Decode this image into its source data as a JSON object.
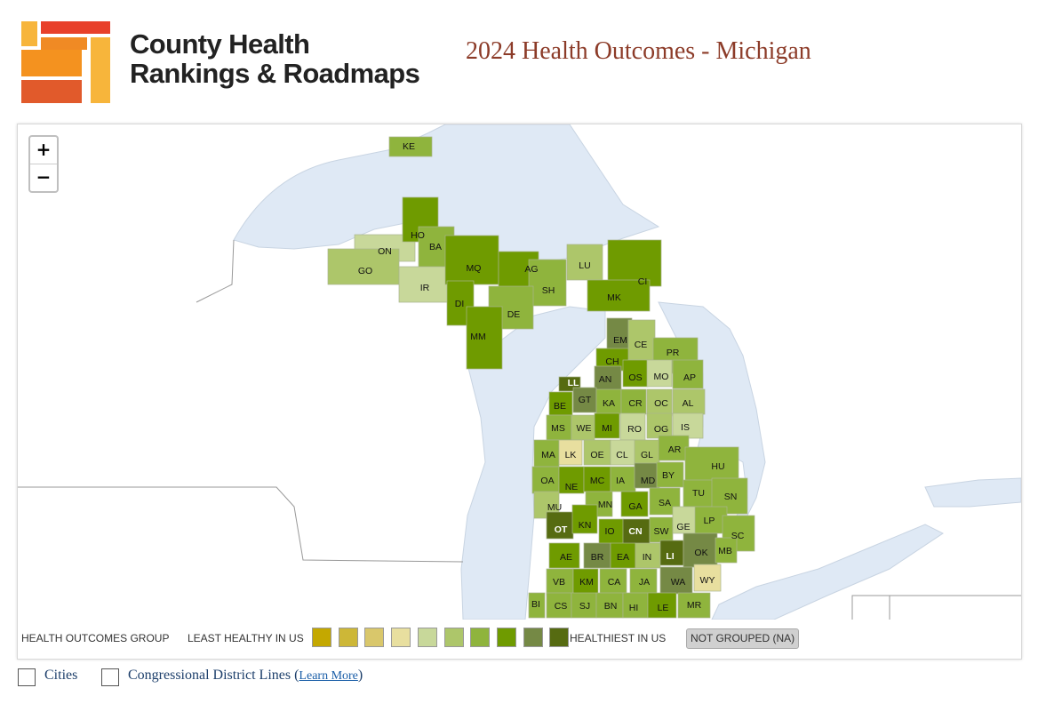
{
  "header": {
    "brand_line1": "County Health",
    "brand_line2": "Rankings & Roadmaps",
    "page_title": "2024 Health Outcomes - Michigan"
  },
  "map": {
    "zoom_in": "+",
    "zoom_out": "−",
    "water_color": "#dfe9f5",
    "land_color": "#ffffff",
    "counties": [
      {
        "abbr": "KE",
        "group": 6
      },
      {
        "abbr": "ON",
        "group": 4
      },
      {
        "abbr": "GO",
        "group": 5
      },
      {
        "abbr": "HO",
        "group": 7
      },
      {
        "abbr": "BA",
        "group": 6
      },
      {
        "abbr": "IR",
        "group": 4
      },
      {
        "abbr": "MQ",
        "group": 7
      },
      {
        "abbr": "AG",
        "group": 7
      },
      {
        "abbr": "LU",
        "group": 5
      },
      {
        "abbr": "CI",
        "group": 7
      },
      {
        "abbr": "SH",
        "group": 6
      },
      {
        "abbr": "DI",
        "group": 7
      },
      {
        "abbr": "DE",
        "group": 6
      },
      {
        "abbr": "MK",
        "group": 7
      },
      {
        "abbr": "MM",
        "group": 7
      },
      {
        "abbr": "EM",
        "group": 8
      },
      {
        "abbr": "CE",
        "group": 5
      },
      {
        "abbr": "CH",
        "group": 7
      },
      {
        "abbr": "PR",
        "group": 6
      },
      {
        "abbr": "OS",
        "group": 7
      },
      {
        "abbr": "MO",
        "group": 4
      },
      {
        "abbr": "AP",
        "group": 6
      },
      {
        "abbr": "AN",
        "group": 8
      },
      {
        "abbr": "LL",
        "group": 9
      },
      {
        "abbr": "BE",
        "group": 7
      },
      {
        "abbr": "GT",
        "group": 8
      },
      {
        "abbr": "KA",
        "group": 6
      },
      {
        "abbr": "CR",
        "group": 6
      },
      {
        "abbr": "OC",
        "group": 5
      },
      {
        "abbr": "AL",
        "group": 5
      },
      {
        "abbr": "MS",
        "group": 6
      },
      {
        "abbr": "WE",
        "group": 5
      },
      {
        "abbr": "MI",
        "group": 7
      },
      {
        "abbr": "RO",
        "group": 4
      },
      {
        "abbr": "OG",
        "group": 5
      },
      {
        "abbr": "IS",
        "group": 4
      },
      {
        "abbr": "MA",
        "group": 6
      },
      {
        "abbr": "LK",
        "group": 3
      },
      {
        "abbr": "OE",
        "group": 5
      },
      {
        "abbr": "CL",
        "group": 4
      },
      {
        "abbr": "GL",
        "group": 5
      },
      {
        "abbr": "AR",
        "group": 6
      },
      {
        "abbr": "OA",
        "group": 6
      },
      {
        "abbr": "NE",
        "group": 7
      },
      {
        "abbr": "MC",
        "group": 7
      },
      {
        "abbr": "IA",
        "group": 6
      },
      {
        "abbr": "MD",
        "group": 8
      },
      {
        "abbr": "BY",
        "group": 6
      },
      {
        "abbr": "HU",
        "group": 6
      },
      {
        "abbr": "TU",
        "group": 6
      },
      {
        "abbr": "SN",
        "group": 6
      },
      {
        "abbr": "MU",
        "group": 5
      },
      {
        "abbr": "MN",
        "group": 6
      },
      {
        "abbr": "GA",
        "group": 7
      },
      {
        "abbr": "SA",
        "group": 6
      },
      {
        "abbr": "OT",
        "group": 9
      },
      {
        "abbr": "KN",
        "group": 7
      },
      {
        "abbr": "IO",
        "group": 7
      },
      {
        "abbr": "CN",
        "group": 9
      },
      {
        "abbr": "SW",
        "group": 6
      },
      {
        "abbr": "GE",
        "group": 4
      },
      {
        "abbr": "LP",
        "group": 6
      },
      {
        "abbr": "SC",
        "group": 6
      },
      {
        "abbr": "AE",
        "group": 7
      },
      {
        "abbr": "BR",
        "group": 8
      },
      {
        "abbr": "EA",
        "group": 7
      },
      {
        "abbr": "IN",
        "group": 5
      },
      {
        "abbr": "LI",
        "group": 9
      },
      {
        "abbr": "OK",
        "group": 8
      },
      {
        "abbr": "MB",
        "group": 6
      },
      {
        "abbr": "VB",
        "group": 6
      },
      {
        "abbr": "KM",
        "group": 7
      },
      {
        "abbr": "CA",
        "group": 6
      },
      {
        "abbr": "JA",
        "group": 6
      },
      {
        "abbr": "WA",
        "group": 8
      },
      {
        "abbr": "WY",
        "group": 3
      },
      {
        "abbr": "BI",
        "group": 6
      },
      {
        "abbr": "CS",
        "group": 6
      },
      {
        "abbr": "SJ",
        "group": 6
      },
      {
        "abbr": "BN",
        "group": 6
      },
      {
        "abbr": "HI",
        "group": 6
      },
      {
        "abbr": "LE",
        "group": 7
      },
      {
        "abbr": "MR",
        "group": 6
      }
    ]
  },
  "legend": {
    "title": "HEALTH OUTCOMES GROUP",
    "least": "LEAST HEALTHY IN US",
    "healthiest": "HEALTHIEST IN US",
    "not_grouped": "NOT GROUPED (NA)",
    "colors": [
      "#c4a800",
      "#cdb737",
      "#d9c76b",
      "#e8df9f",
      "#c8d89a",
      "#adc66a",
      "#8fb43d",
      "#6f9b00",
      "#758945",
      "#566b11"
    ]
  },
  "controls": {
    "cities_label": "Cities",
    "districts_label": "Congressional District Lines (",
    "learn_more": "Learn More",
    "close_paren": ")"
  }
}
